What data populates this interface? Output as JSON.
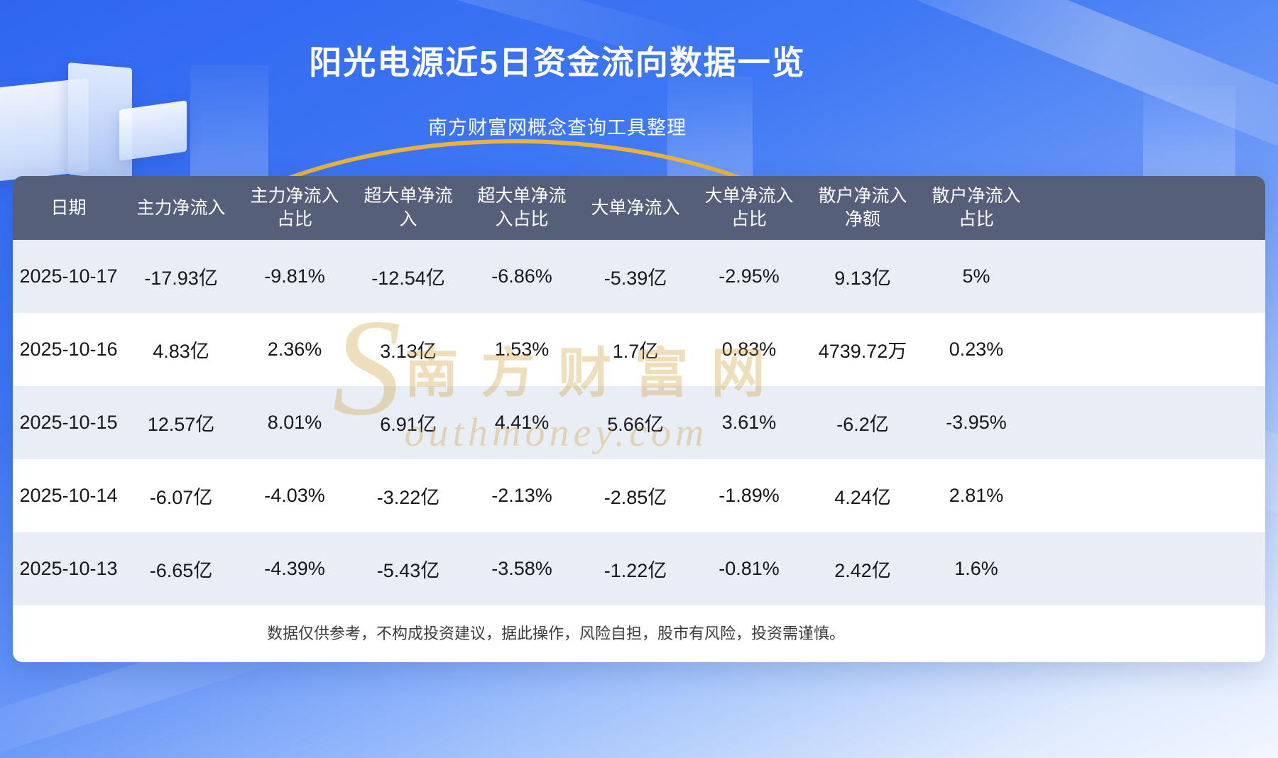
{
  "header": {
    "title": "阳光电源近5日资金流向数据一览",
    "subtitle": "南方财富网概念查询工具整理"
  },
  "table": {
    "header_display": [
      "日期",
      "主力净流入",
      "主力净流入\n占比",
      "超大单净流\n入",
      "超大单净流\n入占比",
      "大单净流入",
      "大单净流入\n占比",
      "散户净流入\n净额",
      "散户净流入\n占比"
    ]
  },
  "footer": {
    "disclaimer": "数据仅供参考，不构成投资建议，据此操作，风险自担，股市有风险，投资需谨慎。"
  },
  "watermark": {
    "initial": "S",
    "cn": "南方财富网",
    "en": "outhmoney.com"
  },
  "colors": {
    "background_blue": "#2F66F0",
    "header_bg": "#565F79",
    "row_alt": "#E9EDF6",
    "row_white": "#FFFFFF",
    "title_color": "#FFFFFF",
    "arc_gold": "#E8B23C",
    "watermark_gold": "#CF9A2E"
  },
  "chart_data": {
    "type": "table",
    "title": "阳光电源近5日资金流向数据一览",
    "columns": [
      "日期",
      "主力净流入",
      "主力净流入占比",
      "超大单净流入",
      "超大单净流入占比",
      "大单净流入",
      "大单净流入占比",
      "散户净流入净额",
      "散户净流入占比"
    ],
    "rows": [
      [
        "2025-10-17",
        "-17.93亿",
        "-9.81%",
        "-12.54亿",
        "-6.86%",
        "-5.39亿",
        "-2.95%",
        "9.13亿",
        "5%"
      ],
      [
        "2025-10-16",
        "4.83亿",
        "2.36%",
        "3.13亿",
        "1.53%",
        "1.7亿",
        "0.83%",
        "4739.72万",
        "0.23%"
      ],
      [
        "2025-10-15",
        "12.57亿",
        "8.01%",
        "6.91亿",
        "4.41%",
        "5.66亿",
        "3.61%",
        "-6.2亿",
        "-3.95%"
      ],
      [
        "2025-10-14",
        "-6.07亿",
        "-4.03%",
        "-3.22亿",
        "-2.13%",
        "-2.85亿",
        "-1.89%",
        "4.24亿",
        "2.81%"
      ],
      [
        "2025-10-13",
        "-6.65亿",
        "-4.39%",
        "-5.43亿",
        "-3.58%",
        "-1.22亿",
        "-0.81%",
        "2.42亿",
        "1.6%"
      ]
    ]
  }
}
